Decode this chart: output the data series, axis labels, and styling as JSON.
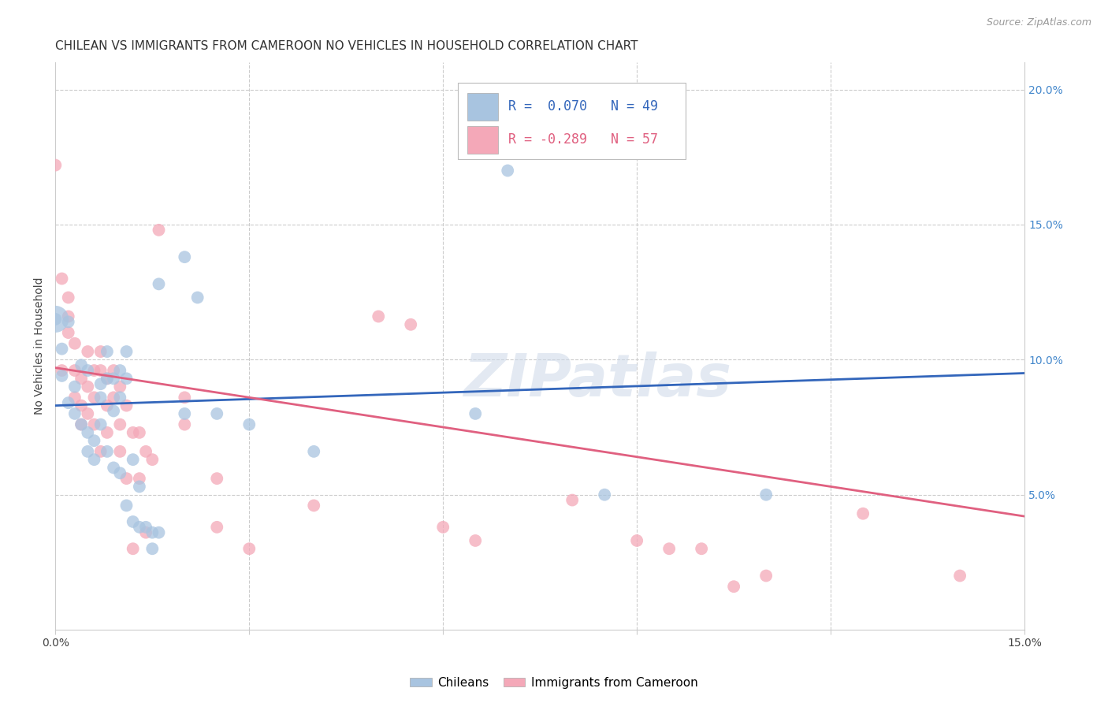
{
  "title": "CHILEAN VS IMMIGRANTS FROM CAMEROON NO VEHICLES IN HOUSEHOLD CORRELATION CHART",
  "source_text": "Source: ZipAtlas.com",
  "ylabel": "No Vehicles in Household",
  "xlim": [
    0.0,
    0.15
  ],
  "ylim": [
    0.0,
    0.21
  ],
  "blue_R": "0.070",
  "blue_N": "49",
  "pink_R": "-0.289",
  "pink_N": "57",
  "blue_color": "#a8c4e0",
  "blue_line_color": "#3366bb",
  "pink_color": "#f4a8b8",
  "pink_line_color": "#e06080",
  "legend_label_blue": "Chileans",
  "legend_label_pink": "Immigrants from Cameroon",
  "watermark": "ZIPatlas",
  "blue_line": [
    [
      0.0,
      0.083
    ],
    [
      0.15,
      0.095
    ]
  ],
  "pink_line": [
    [
      0.0,
      0.097
    ],
    [
      0.15,
      0.042
    ]
  ],
  "blue_points": [
    [
      0.001,
      0.104
    ],
    [
      0.001,
      0.094
    ],
    [
      0.002,
      0.114
    ],
    [
      0.002,
      0.084
    ],
    [
      0.003,
      0.09
    ],
    [
      0.003,
      0.08
    ],
    [
      0.004,
      0.076
    ],
    [
      0.004,
      0.098
    ],
    [
      0.005,
      0.096
    ],
    [
      0.005,
      0.073
    ],
    [
      0.005,
      0.066
    ],
    [
      0.006,
      0.07
    ],
    [
      0.006,
      0.063
    ],
    [
      0.007,
      0.091
    ],
    [
      0.007,
      0.086
    ],
    [
      0.007,
      0.076
    ],
    [
      0.008,
      0.093
    ],
    [
      0.008,
      0.103
    ],
    [
      0.008,
      0.066
    ],
    [
      0.009,
      0.093
    ],
    [
      0.009,
      0.081
    ],
    [
      0.009,
      0.06
    ],
    [
      0.01,
      0.096
    ],
    [
      0.01,
      0.086
    ],
    [
      0.01,
      0.058
    ],
    [
      0.011,
      0.103
    ],
    [
      0.011,
      0.093
    ],
    [
      0.011,
      0.046
    ],
    [
      0.012,
      0.063
    ],
    [
      0.012,
      0.04
    ],
    [
      0.013,
      0.053
    ],
    [
      0.013,
      0.038
    ],
    [
      0.014,
      0.038
    ],
    [
      0.015,
      0.036
    ],
    [
      0.015,
      0.03
    ],
    [
      0.016,
      0.128
    ],
    [
      0.016,
      0.036
    ],
    [
      0.02,
      0.138
    ],
    [
      0.02,
      0.08
    ],
    [
      0.022,
      0.123
    ],
    [
      0.025,
      0.08
    ],
    [
      0.03,
      0.076
    ],
    [
      0.04,
      0.066
    ],
    [
      0.065,
      0.08
    ],
    [
      0.07,
      0.188
    ],
    [
      0.07,
      0.17
    ],
    [
      0.085,
      0.05
    ],
    [
      0.11,
      0.05
    ],
    [
      0.0,
      0.115
    ]
  ],
  "pink_points": [
    [
      0.0,
      0.172
    ],
    [
      0.001,
      0.13
    ],
    [
      0.001,
      0.096
    ],
    [
      0.002,
      0.123
    ],
    [
      0.002,
      0.116
    ],
    [
      0.002,
      0.11
    ],
    [
      0.003,
      0.106
    ],
    [
      0.003,
      0.096
    ],
    [
      0.003,
      0.086
    ],
    [
      0.004,
      0.093
    ],
    [
      0.004,
      0.083
    ],
    [
      0.004,
      0.076
    ],
    [
      0.005,
      0.103
    ],
    [
      0.005,
      0.09
    ],
    [
      0.005,
      0.08
    ],
    [
      0.006,
      0.096
    ],
    [
      0.006,
      0.086
    ],
    [
      0.006,
      0.076
    ],
    [
      0.007,
      0.103
    ],
    [
      0.007,
      0.096
    ],
    [
      0.007,
      0.066
    ],
    [
      0.008,
      0.093
    ],
    [
      0.008,
      0.083
    ],
    [
      0.008,
      0.073
    ],
    [
      0.009,
      0.096
    ],
    [
      0.009,
      0.086
    ],
    [
      0.01,
      0.09
    ],
    [
      0.01,
      0.076
    ],
    [
      0.01,
      0.066
    ],
    [
      0.011,
      0.083
    ],
    [
      0.011,
      0.056
    ],
    [
      0.012,
      0.073
    ],
    [
      0.012,
      0.03
    ],
    [
      0.013,
      0.073
    ],
    [
      0.013,
      0.056
    ],
    [
      0.014,
      0.066
    ],
    [
      0.014,
      0.036
    ],
    [
      0.015,
      0.063
    ],
    [
      0.016,
      0.148
    ],
    [
      0.02,
      0.086
    ],
    [
      0.02,
      0.076
    ],
    [
      0.025,
      0.056
    ],
    [
      0.025,
      0.038
    ],
    [
      0.03,
      0.03
    ],
    [
      0.04,
      0.046
    ],
    [
      0.05,
      0.116
    ],
    [
      0.055,
      0.113
    ],
    [
      0.06,
      0.038
    ],
    [
      0.065,
      0.033
    ],
    [
      0.08,
      0.048
    ],
    [
      0.09,
      0.033
    ],
    [
      0.095,
      0.03
    ],
    [
      0.1,
      0.03
    ],
    [
      0.105,
      0.016
    ],
    [
      0.11,
      0.02
    ],
    [
      0.125,
      0.043
    ],
    [
      0.14,
      0.02
    ]
  ],
  "title_fontsize": 11,
  "tick_fontsize": 10,
  "ylabel_fontsize": 10
}
